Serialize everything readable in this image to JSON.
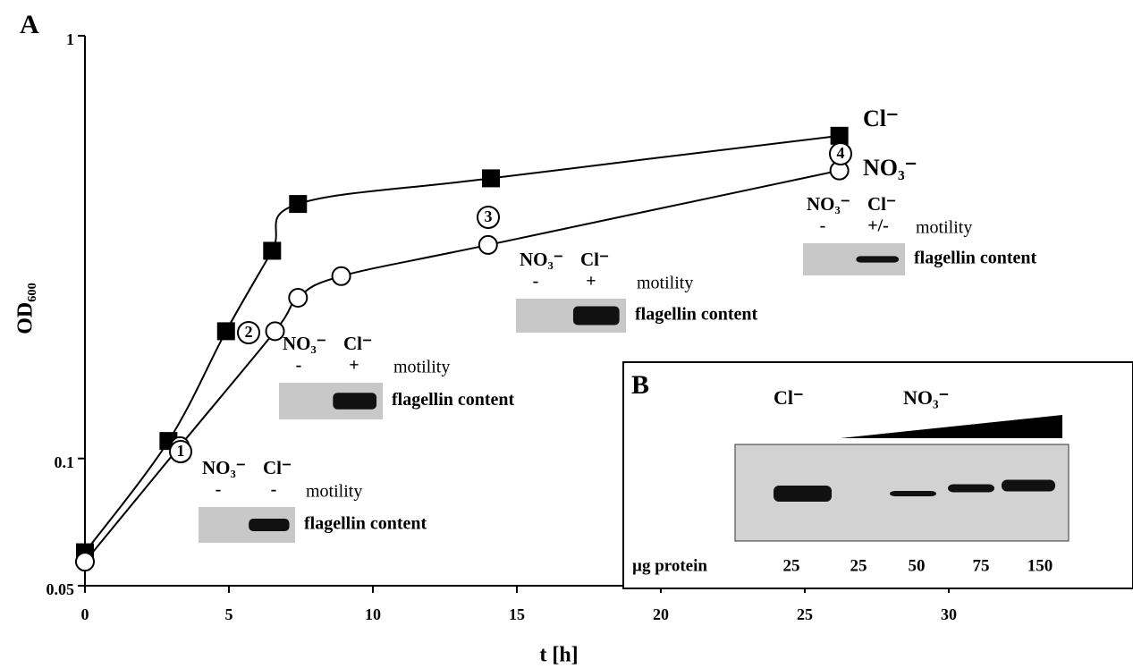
{
  "chart_data": {
    "type": "line",
    "panel_label": "A",
    "xlabel": "t [h]",
    "ylabel": "OD₆₀₀",
    "xlim": [
      0,
      36
    ],
    "xticks": [
      0,
      5,
      10,
      15,
      20,
      25,
      30
    ],
    "ylim": [
      0.05,
      1
    ],
    "yticks": [
      0.05,
      0.1,
      1
    ],
    "log_y": true,
    "series": [
      {
        "name": "Cl⁻",
        "color": "#000000",
        "marker": "square",
        "x": [
          0,
          2.9,
          4.9,
          6.5,
          7.4,
          14.1,
          26.2
        ],
        "values": [
          0.06,
          0.11,
          0.2,
          0.31,
          0.4,
          0.46,
          0.58
        ]
      },
      {
        "name": "NO₃⁻",
        "color": "#000000",
        "marker": "circle",
        "x": [
          0,
          3.3,
          6.6,
          7.4,
          8.9,
          14.0,
          26.2
        ],
        "values": [
          0.057,
          0.107,
          0.2,
          0.24,
          0.27,
          0.32,
          0.48
        ]
      }
    ],
    "stage_labels": [
      "1",
      "2",
      "3",
      "4"
    ],
    "blots": [
      {
        "lanes": [
          "NO₃⁻",
          "Cl⁻"
        ],
        "motility": [
          "-",
          "-"
        ],
        "motility_label": "motility",
        "content_label": "flagellin content"
      },
      {
        "lanes": [
          "NO₃⁻",
          "Cl⁻"
        ],
        "motility": [
          "-",
          "+"
        ],
        "motility_label": "motility",
        "content_label": "flagellin content"
      },
      {
        "lanes": [
          "NO₃⁻",
          "Cl⁻"
        ],
        "motility": [
          "-",
          "+"
        ],
        "motility_label": "motility",
        "content_label": "flagellin content"
      },
      {
        "lanes": [
          "NO₃⁻",
          "Cl⁻"
        ],
        "motility": [
          "-",
          "+/-"
        ],
        "motility_label": "motility",
        "content_label": "flagellin content"
      }
    ],
    "inset": {
      "panel_label": "B",
      "groups": [
        "Cl⁻",
        "NO₃⁻"
      ],
      "row_label": "µg protein",
      "amounts": [
        "25",
        "25",
        "50",
        "75",
        "150"
      ]
    }
  }
}
